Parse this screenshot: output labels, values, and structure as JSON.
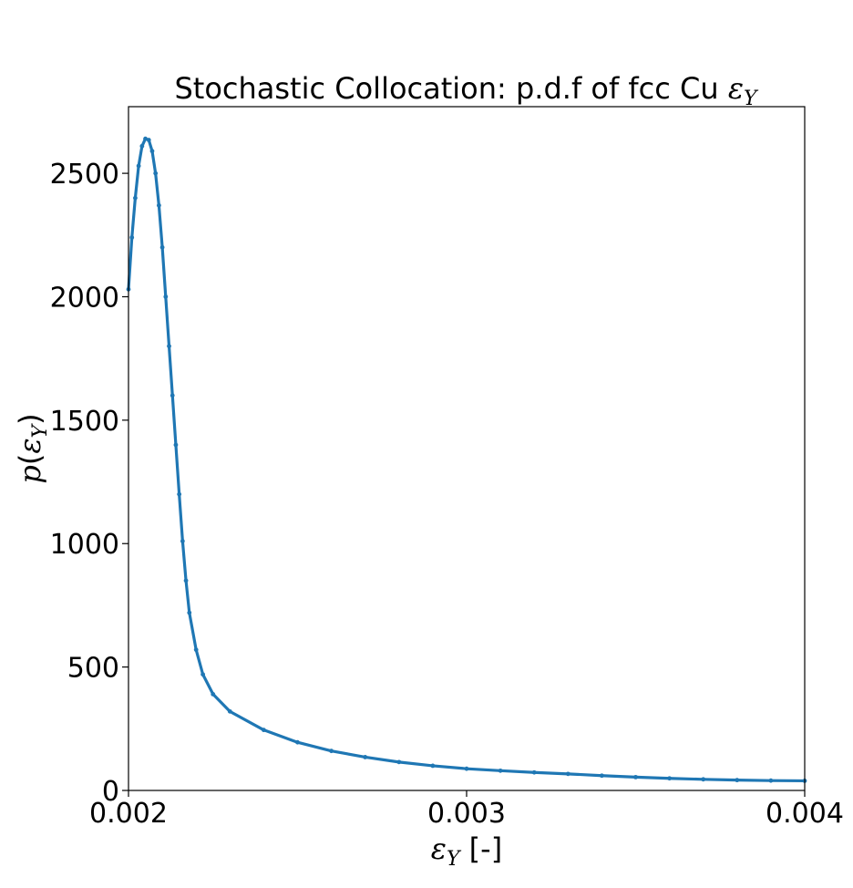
{
  "chart_data": {
    "type": "scatter",
    "title_prefix": "Stochastic Collocation: p.d.f of fcc Cu ",
    "title_symbol": "ε",
    "title_subscript": "Y",
    "xlabel_symbol": "ε",
    "xlabel_subscript": "Y",
    "xlabel_suffix": " [-]",
    "ylabel_p": "p",
    "ylabel_open": "(",
    "ylabel_symbol": "ε",
    "ylabel_subscript": "Y",
    "ylabel_close": ")",
    "xlim": [
      0.002,
      0.004
    ],
    "ylim": [
      0,
      2770
    ],
    "x_ticks": [
      0.002,
      0.003,
      0.004
    ],
    "x_tick_labels": [
      "0.002",
      "0.003",
      "0.004"
    ],
    "y_ticks": [
      0,
      500,
      1000,
      1500,
      2000,
      2500
    ],
    "y_tick_labels": [
      "0",
      "500",
      "1000",
      "1500",
      "2000",
      "2500"
    ],
    "grid": false,
    "series_color": "#1f77b4",
    "curve_points": [
      [
        0.002,
        2030
      ],
      [
        0.00201,
        2240
      ],
      [
        0.00202,
        2400
      ],
      [
        0.00203,
        2530
      ],
      [
        0.00204,
        2610
      ],
      [
        0.00205,
        2640
      ],
      [
        0.00206,
        2635
      ],
      [
        0.00207,
        2590
      ],
      [
        0.00208,
        2500
      ],
      [
        0.00209,
        2370
      ],
      [
        0.0021,
        2200
      ],
      [
        0.00211,
        2000
      ],
      [
        0.00212,
        1800
      ],
      [
        0.00213,
        1600
      ],
      [
        0.00214,
        1400
      ],
      [
        0.00215,
        1200
      ],
      [
        0.00216,
        1010
      ],
      [
        0.00217,
        850
      ],
      [
        0.00218,
        720
      ],
      [
        0.0022,
        570
      ],
      [
        0.00222,
        470
      ],
      [
        0.00225,
        390
      ],
      [
        0.0023,
        320
      ],
      [
        0.0024,
        245
      ],
      [
        0.0025,
        195
      ],
      [
        0.0026,
        160
      ],
      [
        0.0027,
        135
      ],
      [
        0.0028,
        115
      ],
      [
        0.0029,
        100
      ],
      [
        0.003,
        88
      ],
      [
        0.0031,
        80
      ],
      [
        0.0032,
        73
      ],
      [
        0.0033,
        67
      ],
      [
        0.0034,
        60
      ],
      [
        0.0035,
        54
      ],
      [
        0.0036,
        49
      ],
      [
        0.0037,
        45
      ],
      [
        0.0038,
        42
      ],
      [
        0.0039,
        40
      ],
      [
        0.004,
        39
      ]
    ]
  }
}
